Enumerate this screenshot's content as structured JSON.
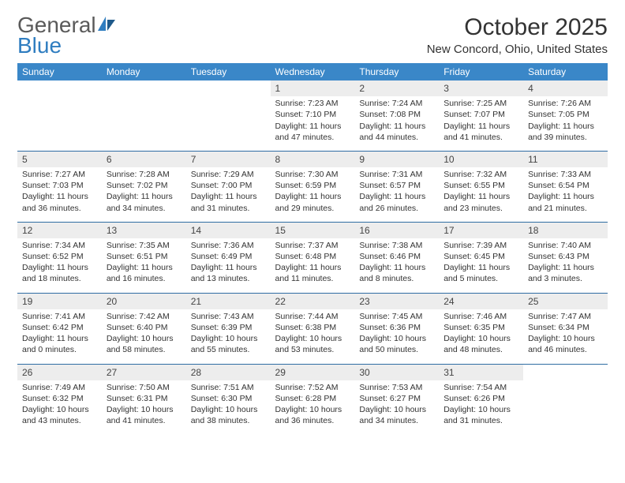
{
  "logo": {
    "word1": "General",
    "word2": "Blue"
  },
  "title": "October 2025",
  "location": "New Concord, Ohio, United States",
  "colors": {
    "header_bg": "#3a87c8",
    "daynum_bg": "#ededed",
    "week_border": "#2f6da3",
    "logo_accent": "#2f7dc0",
    "text": "#333333"
  },
  "day_labels": [
    "Sunday",
    "Monday",
    "Tuesday",
    "Wednesday",
    "Thursday",
    "Friday",
    "Saturday"
  ],
  "weeks": [
    [
      null,
      null,
      null,
      {
        "n": "1",
        "sr": "Sunrise: 7:23 AM",
        "ss": "Sunset: 7:10 PM",
        "dl": "Daylight: 11 hours and 47 minutes."
      },
      {
        "n": "2",
        "sr": "Sunrise: 7:24 AM",
        "ss": "Sunset: 7:08 PM",
        "dl": "Daylight: 11 hours and 44 minutes."
      },
      {
        "n": "3",
        "sr": "Sunrise: 7:25 AM",
        "ss": "Sunset: 7:07 PM",
        "dl": "Daylight: 11 hours and 41 minutes."
      },
      {
        "n": "4",
        "sr": "Sunrise: 7:26 AM",
        "ss": "Sunset: 7:05 PM",
        "dl": "Daylight: 11 hours and 39 minutes."
      }
    ],
    [
      {
        "n": "5",
        "sr": "Sunrise: 7:27 AM",
        "ss": "Sunset: 7:03 PM",
        "dl": "Daylight: 11 hours and 36 minutes."
      },
      {
        "n": "6",
        "sr": "Sunrise: 7:28 AM",
        "ss": "Sunset: 7:02 PM",
        "dl": "Daylight: 11 hours and 34 minutes."
      },
      {
        "n": "7",
        "sr": "Sunrise: 7:29 AM",
        "ss": "Sunset: 7:00 PM",
        "dl": "Daylight: 11 hours and 31 minutes."
      },
      {
        "n": "8",
        "sr": "Sunrise: 7:30 AM",
        "ss": "Sunset: 6:59 PM",
        "dl": "Daylight: 11 hours and 29 minutes."
      },
      {
        "n": "9",
        "sr": "Sunrise: 7:31 AM",
        "ss": "Sunset: 6:57 PM",
        "dl": "Daylight: 11 hours and 26 minutes."
      },
      {
        "n": "10",
        "sr": "Sunrise: 7:32 AM",
        "ss": "Sunset: 6:55 PM",
        "dl": "Daylight: 11 hours and 23 minutes."
      },
      {
        "n": "11",
        "sr": "Sunrise: 7:33 AM",
        "ss": "Sunset: 6:54 PM",
        "dl": "Daylight: 11 hours and 21 minutes."
      }
    ],
    [
      {
        "n": "12",
        "sr": "Sunrise: 7:34 AM",
        "ss": "Sunset: 6:52 PM",
        "dl": "Daylight: 11 hours and 18 minutes."
      },
      {
        "n": "13",
        "sr": "Sunrise: 7:35 AM",
        "ss": "Sunset: 6:51 PM",
        "dl": "Daylight: 11 hours and 16 minutes."
      },
      {
        "n": "14",
        "sr": "Sunrise: 7:36 AM",
        "ss": "Sunset: 6:49 PM",
        "dl": "Daylight: 11 hours and 13 minutes."
      },
      {
        "n": "15",
        "sr": "Sunrise: 7:37 AM",
        "ss": "Sunset: 6:48 PM",
        "dl": "Daylight: 11 hours and 11 minutes."
      },
      {
        "n": "16",
        "sr": "Sunrise: 7:38 AM",
        "ss": "Sunset: 6:46 PM",
        "dl": "Daylight: 11 hours and 8 minutes."
      },
      {
        "n": "17",
        "sr": "Sunrise: 7:39 AM",
        "ss": "Sunset: 6:45 PM",
        "dl": "Daylight: 11 hours and 5 minutes."
      },
      {
        "n": "18",
        "sr": "Sunrise: 7:40 AM",
        "ss": "Sunset: 6:43 PM",
        "dl": "Daylight: 11 hours and 3 minutes."
      }
    ],
    [
      {
        "n": "19",
        "sr": "Sunrise: 7:41 AM",
        "ss": "Sunset: 6:42 PM",
        "dl": "Daylight: 11 hours and 0 minutes."
      },
      {
        "n": "20",
        "sr": "Sunrise: 7:42 AM",
        "ss": "Sunset: 6:40 PM",
        "dl": "Daylight: 10 hours and 58 minutes."
      },
      {
        "n": "21",
        "sr": "Sunrise: 7:43 AM",
        "ss": "Sunset: 6:39 PM",
        "dl": "Daylight: 10 hours and 55 minutes."
      },
      {
        "n": "22",
        "sr": "Sunrise: 7:44 AM",
        "ss": "Sunset: 6:38 PM",
        "dl": "Daylight: 10 hours and 53 minutes."
      },
      {
        "n": "23",
        "sr": "Sunrise: 7:45 AM",
        "ss": "Sunset: 6:36 PM",
        "dl": "Daylight: 10 hours and 50 minutes."
      },
      {
        "n": "24",
        "sr": "Sunrise: 7:46 AM",
        "ss": "Sunset: 6:35 PM",
        "dl": "Daylight: 10 hours and 48 minutes."
      },
      {
        "n": "25",
        "sr": "Sunrise: 7:47 AM",
        "ss": "Sunset: 6:34 PM",
        "dl": "Daylight: 10 hours and 46 minutes."
      }
    ],
    [
      {
        "n": "26",
        "sr": "Sunrise: 7:49 AM",
        "ss": "Sunset: 6:32 PM",
        "dl": "Daylight: 10 hours and 43 minutes."
      },
      {
        "n": "27",
        "sr": "Sunrise: 7:50 AM",
        "ss": "Sunset: 6:31 PM",
        "dl": "Daylight: 10 hours and 41 minutes."
      },
      {
        "n": "28",
        "sr": "Sunrise: 7:51 AM",
        "ss": "Sunset: 6:30 PM",
        "dl": "Daylight: 10 hours and 38 minutes."
      },
      {
        "n": "29",
        "sr": "Sunrise: 7:52 AM",
        "ss": "Sunset: 6:28 PM",
        "dl": "Daylight: 10 hours and 36 minutes."
      },
      {
        "n": "30",
        "sr": "Sunrise: 7:53 AM",
        "ss": "Sunset: 6:27 PM",
        "dl": "Daylight: 10 hours and 34 minutes."
      },
      {
        "n": "31",
        "sr": "Sunrise: 7:54 AM",
        "ss": "Sunset: 6:26 PM",
        "dl": "Daylight: 10 hours and 31 minutes."
      },
      null
    ]
  ]
}
